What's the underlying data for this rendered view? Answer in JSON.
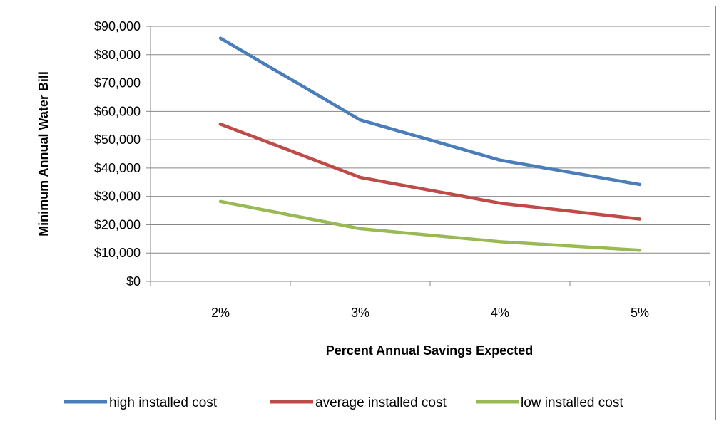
{
  "chart_data": {
    "type": "line",
    "title": "",
    "xlabel": "Percent Annual Savings Expected",
    "ylabel": "Minimum Annual  Water Bill",
    "categories": [
      "2%",
      "3%",
      "4%",
      "5%"
    ],
    "ylim": [
      0,
      90000
    ],
    "yticks": [
      0,
      10000,
      20000,
      30000,
      40000,
      50000,
      60000,
      70000,
      80000,
      90000
    ],
    "ytick_labels": [
      "$0",
      "$10,000",
      "$20,000",
      "$30,000",
      "$40,000",
      "$50,000",
      "$60,000",
      "$70,000",
      "$80,000",
      "$90,000"
    ],
    "grid": "horizontal",
    "legend_position": "bottom",
    "series": [
      {
        "name": "high installed cost",
        "color": "#4a7ebb",
        "values": [
          85800,
          57000,
          42800,
          34200
        ]
      },
      {
        "name": "average installed cost",
        "color": "#be4b48",
        "values": [
          55500,
          36700,
          27600,
          22000
        ]
      },
      {
        "name": "low installed cost",
        "color": "#98b954",
        "values": [
          28200,
          18600,
          14000,
          11000
        ]
      }
    ]
  }
}
